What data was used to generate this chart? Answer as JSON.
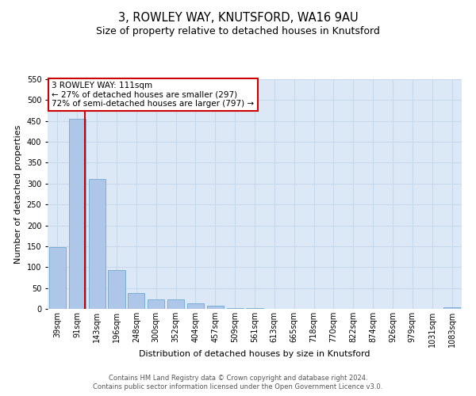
{
  "title": "3, ROWLEY WAY, KNUTSFORD, WA16 9AU",
  "subtitle": "Size of property relative to detached houses in Knutsford",
  "xlabel": "Distribution of detached houses by size in Knutsford",
  "ylabel": "Number of detached properties",
  "bar_labels": [
    "39sqm",
    "91sqm",
    "143sqm",
    "196sqm",
    "248sqm",
    "300sqm",
    "352sqm",
    "404sqm",
    "457sqm",
    "509sqm",
    "561sqm",
    "613sqm",
    "665sqm",
    "718sqm",
    "770sqm",
    "822sqm",
    "874sqm",
    "926sqm",
    "979sqm",
    "1031sqm",
    "1083sqm"
  ],
  "bar_values": [
    148,
    455,
    311,
    93,
    37,
    22,
    23,
    13,
    7,
    2,
    1,
    0,
    0,
    0,
    0,
    0,
    0,
    0,
    0,
    0,
    4
  ],
  "bar_color": "#aec6e8",
  "bar_edge_color": "#7bafd4",
  "ylim": [
    0,
    550
  ],
  "yticks": [
    0,
    50,
    100,
    150,
    200,
    250,
    300,
    350,
    400,
    450,
    500,
    550
  ],
  "annotation_box_text": "3 ROWLEY WAY: 111sqm\n← 27% of detached houses are smaller (297)\n72% of semi-detached houses are larger (797) →",
  "annotation_box_color": "#ffffff",
  "annotation_box_edge_color": "#cc0000",
  "vline_color": "#cc0000",
  "vline_x_index": 1.38,
  "footer_line1": "Contains HM Land Registry data © Crown copyright and database right 2024.",
  "footer_line2": "Contains public sector information licensed under the Open Government Licence v3.0.",
  "background_color": "#ffffff",
  "plot_bg_color": "#dce8f5",
  "grid_color": "#c8d8ec",
  "title_fontsize": 10.5,
  "subtitle_fontsize": 9,
  "axis_label_fontsize": 8,
  "tick_fontsize": 7,
  "annotation_fontsize": 7.5,
  "footer_fontsize": 6
}
